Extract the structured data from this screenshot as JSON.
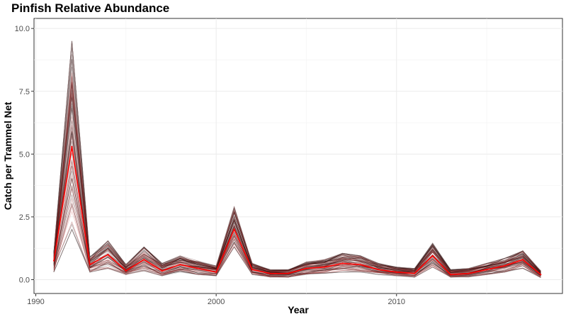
{
  "chart_data": {
    "type": "line",
    "title": "Pinfish Relative Abundance",
    "xlabel": "Year",
    "ylabel": "Catch per Trammel Net",
    "xlim": [
      1989.9,
      2019.2
    ],
    "ylim": [
      -0.55,
      10.4
    ],
    "x_ticks": [
      1990,
      2000,
      2010
    ],
    "x_tick_labels": [
      "1990",
      "2000",
      "2010"
    ],
    "y_ticks": [
      0,
      2.5,
      5,
      7.5,
      10
    ],
    "y_tick_labels": [
      "0.0",
      "2.5",
      "5.0",
      "7.5",
      "10.0"
    ],
    "grid": true,
    "x": [
      1991,
      1992,
      1993,
      1994,
      1995,
      1996,
      1997,
      1998,
      1999,
      2000,
      2001,
      2002,
      2003,
      2004,
      2005,
      2006,
      2007,
      2008,
      2009,
      2010,
      2011,
      2012,
      2013,
      2014,
      2015,
      2016,
      2017,
      2018
    ],
    "series": [
      {
        "role": "estimate",
        "color": "#ff0000",
        "values": [
          0.75,
          5.3,
          0.6,
          1.0,
          0.35,
          0.8,
          0.35,
          0.6,
          0.45,
          0.3,
          2.0,
          0.4,
          0.25,
          0.25,
          0.45,
          0.5,
          0.65,
          0.6,
          0.4,
          0.3,
          0.25,
          0.95,
          0.2,
          0.25,
          0.4,
          0.55,
          0.8,
          0.2
        ]
      },
      {
        "role": "bootstrap-upper",
        "color": "#330000",
        "values": [
          1.1,
          9.5,
          0.9,
          1.55,
          0.6,
          1.3,
          0.65,
          0.95,
          0.75,
          0.55,
          2.9,
          0.65,
          0.4,
          0.4,
          0.7,
          0.8,
          1.05,
          0.95,
          0.65,
          0.5,
          0.45,
          1.45,
          0.4,
          0.45,
          0.65,
          0.85,
          1.15,
          0.35
        ]
      },
      {
        "role": "bootstrap-lower",
        "color": "#330000",
        "values": [
          0.3,
          2.0,
          0.3,
          0.45,
          0.2,
          0.35,
          0.15,
          0.3,
          0.2,
          0.15,
          1.3,
          0.2,
          0.1,
          0.1,
          0.2,
          0.25,
          0.3,
          0.3,
          0.2,
          0.15,
          0.1,
          0.5,
          0.1,
          0.1,
          0.2,
          0.3,
          0.45,
          0.08
        ]
      }
    ]
  }
}
